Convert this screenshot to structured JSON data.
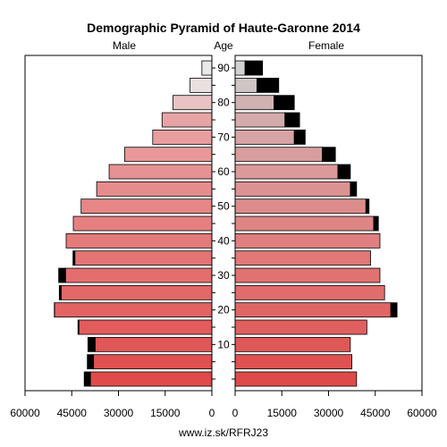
{
  "chart_data": {
    "type": "bar",
    "title": "Demographic Pyramid of Haute-Garonne 2014",
    "left_label": "Male",
    "center_label": "Age",
    "right_label": "Female",
    "footer": "www.iz.sk/RFRJ23",
    "x_max": 60000,
    "x_ticks": [
      0,
      15000,
      30000,
      45000,
      60000
    ],
    "x_tick_labels_left": [
      "60000",
      "45000",
      "30000",
      "15000",
      "0"
    ],
    "x_tick_labels_right": [
      "0",
      "15000",
      "30000",
      "45000",
      "60000"
    ],
    "age_ticks": [
      "10",
      "20",
      "30",
      "40",
      "50",
      "60",
      "70",
      "80",
      "90"
    ],
    "age_groups": [
      "0-4",
      "5-9",
      "10-14",
      "15-19",
      "20-24",
      "25-29",
      "30-34",
      "35-39",
      "40-44",
      "45-49",
      "50-54",
      "55-59",
      "60-64",
      "65-69",
      "70-74",
      "75-79",
      "80-84",
      "85-89",
      "90+"
    ],
    "series": [
      {
        "name": "Male",
        "values": [
          39000,
          38000,
          37500,
          42700,
          50500,
          48400,
          47000,
          44000,
          46800,
          44500,
          42000,
          37000,
          33000,
          28000,
          19000,
          16000,
          12500,
          7000,
          3200
        ]
      },
      {
        "name": "Male (black segment)",
        "values": [
          2000,
          2000,
          2300,
          300,
          100,
          600,
          2200,
          600,
          0,
          0,
          0,
          0,
          0,
          0,
          0,
          0,
          0,
          0,
          0
        ]
      },
      {
        "name": "Female",
        "values": [
          39000,
          37500,
          37000,
          42300,
          50000,
          48000,
          46500,
          43500,
          46500,
          44500,
          42000,
          37000,
          33000,
          28000,
          19000,
          16000,
          12500,
          7000,
          3200
        ]
      },
      {
        "name": "Female (black segment)",
        "values": [
          0,
          0,
          0,
          0,
          2000,
          0,
          0,
          0,
          0,
          1500,
          1000,
          2000,
          4000,
          4200,
          3500,
          4700,
          6500,
          7000,
          5600
        ]
      }
    ],
    "male_colors": [
      "#e04a4a",
      "#e05050",
      "#e15656",
      "#e25c5c",
      "#e36262",
      "#e36868",
      "#e36e6e",
      "#e47474",
      "#e57a7a",
      "#e68080",
      "#e68686",
      "#e78c8c",
      "#e79292",
      "#e89898",
      "#e89e9e",
      "#e8a4a4",
      "#e9c3c3",
      "#e9e0e0",
      "#eaeaea"
    ],
    "female_colors": [
      "#de4a4a",
      "#de5252",
      "#df5858",
      "#e06060",
      "#e06666",
      "#e06c6c",
      "#e07272",
      "#e27878",
      "#e07f7f",
      "#de8585",
      "#dd8c8c",
      "#dd9292",
      "#dc9999",
      "#d89e9e",
      "#d6a4a4",
      "#d4abab",
      "#d1b2b2",
      "#d0c5c5",
      "#d2d2d2"
    ],
    "black": "#000000"
  }
}
